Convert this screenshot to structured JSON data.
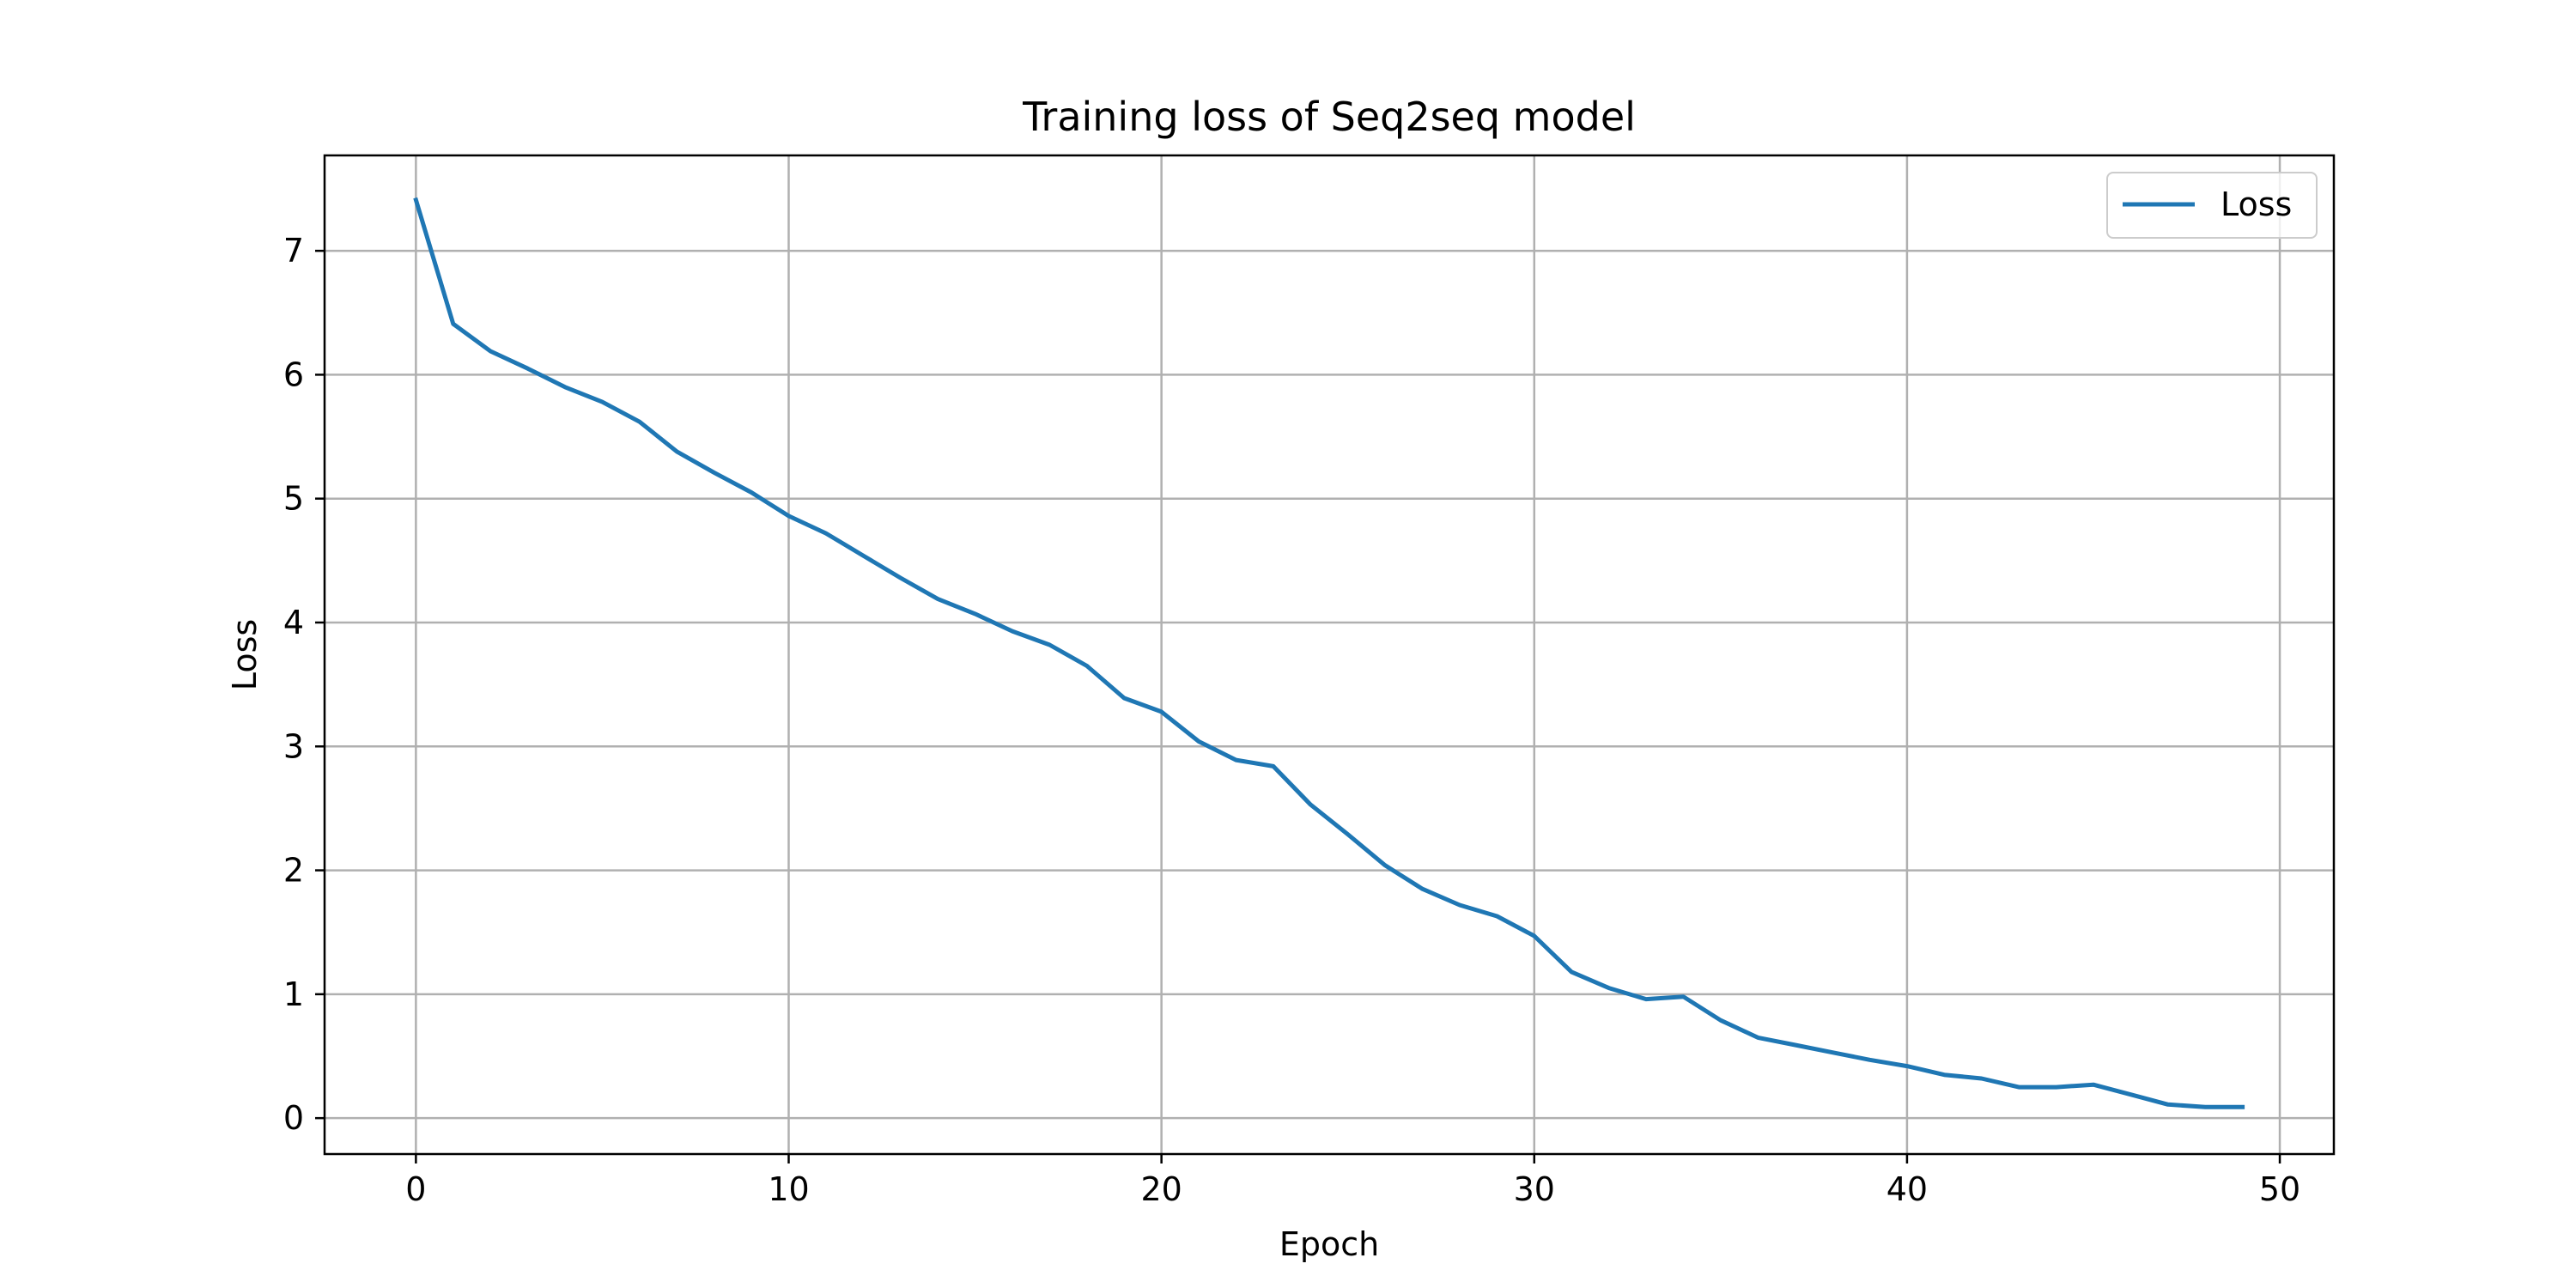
{
  "chart_data": {
    "type": "line",
    "title": "Training loss of Seq2seq model",
    "xlabel": "Epoch",
    "ylabel": "Loss",
    "xlim": [
      -2.45,
      51.45
    ],
    "ylim": [
      -0.29,
      7.77
    ],
    "xticks": [
      0,
      10,
      20,
      30,
      40,
      50
    ],
    "yticks": [
      0,
      1,
      2,
      3,
      4,
      5,
      6,
      7
    ],
    "grid": true,
    "legend_position": "top-right",
    "line_color": "#1f77b4",
    "series": [
      {
        "name": "Loss",
        "x": [
          0,
          1,
          2,
          3,
          4,
          5,
          6,
          7,
          8,
          9,
          10,
          11,
          12,
          13,
          14,
          15,
          16,
          17,
          18,
          19,
          20,
          21,
          22,
          23,
          24,
          25,
          26,
          27,
          28,
          29,
          30,
          31,
          32,
          33,
          34,
          35,
          36,
          37,
          38,
          39,
          40,
          41,
          42,
          43,
          44,
          45,
          46,
          47,
          48,
          49
        ],
        "y": [
          7.41,
          6.41,
          6.19,
          6.05,
          5.9,
          5.78,
          5.62,
          5.38,
          5.21,
          5.05,
          4.86,
          4.72,
          4.54,
          4.36,
          4.19,
          4.07,
          3.93,
          3.82,
          3.65,
          3.39,
          3.28,
          3.04,
          2.89,
          2.84,
          2.53,
          2.29,
          2.04,
          1.85,
          1.72,
          1.63,
          1.47,
          1.18,
          1.05,
          0.96,
          0.98,
          0.79,
          0.65,
          0.59,
          0.53,
          0.47,
          0.42,
          0.35,
          0.32,
          0.25,
          0.25,
          0.27,
          0.19,
          0.11,
          0.09,
          0.09
        ]
      }
    ]
  }
}
